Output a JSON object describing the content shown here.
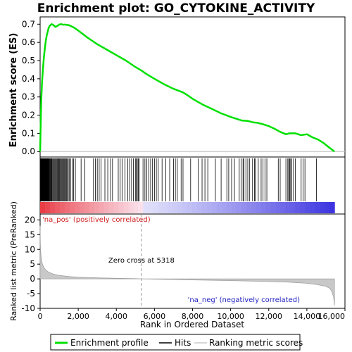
{
  "chart_data": {
    "title": "Enrichment plot: GO_CYTOKINE_ACTIVITY",
    "colors": {
      "enrichment": "#00e000",
      "hits": "#000000",
      "metric_fill": "#c8c8c8",
      "pos_band": "#e8333b",
      "neg_band": "#3b32e0",
      "annotation_pos": "#d02020",
      "annotation_neg": "#2020c0"
    },
    "top": {
      "type": "line",
      "ylabel": "Enrichment score (ES)",
      "ylim": [
        -0.03,
        0.74
      ],
      "yticks": [
        0.0,
        0.1,
        0.2,
        0.3,
        0.4,
        0.5,
        0.6,
        0.7
      ],
      "ytick_labels": [
        "0.0",
        "0.1",
        "0.2",
        "0.3",
        "0.4",
        "0.5",
        "0.6",
        "0.7"
      ],
      "series": [
        {
          "x": [
            0,
            30,
            60,
            100,
            150,
            200,
            250,
            300,
            350,
            400,
            450,
            500,
            600,
            700,
            800,
            900,
            1000,
            1100,
            1200,
            1300,
            1400,
            1500,
            1600,
            1800,
            2000,
            2500,
            3000,
            3500,
            4000,
            4500,
            5000,
            5318,
            5600,
            6000,
            6500,
            7000,
            7500,
            7800,
            8000,
            8500,
            9000,
            9500,
            10000,
            10300,
            10600,
            10900,
            11200,
            11400,
            11700,
            12000,
            12300,
            12600,
            12900,
            13100,
            13400,
            13700,
            14000,
            14300,
            14600,
            14900,
            15200,
            15450
          ],
          "y": [
            0.0,
            0.15,
            0.28,
            0.38,
            0.46,
            0.52,
            0.57,
            0.61,
            0.64,
            0.66,
            0.68,
            0.69,
            0.7,
            0.695,
            0.685,
            0.69,
            0.698,
            0.7,
            0.697,
            0.698,
            0.696,
            0.695,
            0.69,
            0.68,
            0.665,
            0.625,
            0.59,
            0.56,
            0.53,
            0.5,
            0.465,
            0.445,
            0.425,
            0.4,
            0.37,
            0.345,
            0.325,
            0.305,
            0.29,
            0.26,
            0.235,
            0.21,
            0.19,
            0.18,
            0.17,
            0.168,
            0.16,
            0.158,
            0.15,
            0.14,
            0.125,
            0.108,
            0.095,
            0.1,
            0.1,
            0.09,
            0.095,
            0.078,
            0.065,
            0.045,
            0.02,
            0.0
          ]
        }
      ]
    },
    "hits": [
      20,
      40,
      55,
      70,
      85,
      100,
      115,
      130,
      145,
      160,
      175,
      190,
      205,
      220,
      235,
      250,
      265,
      280,
      295,
      310,
      325,
      340,
      360,
      380,
      400,
      420,
      440,
      460,
      480,
      500,
      530,
      560,
      590,
      620,
      660,
      700,
      740,
      780,
      820,
      860,
      900,
      940,
      980,
      1020,
      1060,
      1100,
      1140,
      1180,
      1220,
      1260,
      1300,
      1340,
      1380,
      1420,
      1480,
      1540,
      1600,
      1680,
      1760,
      1850,
      2150,
      2350,
      2800,
      2900,
      3000,
      3100,
      3200,
      3400,
      3550,
      3700,
      3800,
      4100,
      4200,
      4300,
      4450,
      4600,
      4700,
      4800,
      4900,
      5000,
      5050,
      5100,
      5150,
      5200,
      5400,
      5500,
      5600,
      5700,
      5800,
      5900,
      6000,
      6100,
      6200,
      6400,
      6600,
      6800,
      7000,
      7100,
      7200,
      7400,
      7500,
      7900,
      8300,
      8500,
      8650,
      8800,
      9200,
      9500,
      9800,
      9900,
      10050,
      10200,
      10450,
      10550,
      10650,
      10700,
      10800,
      10900,
      11000,
      11150,
      11250,
      11300,
      11450,
      11600,
      11700,
      11800,
      11900,
      12500,
      12600,
      12900,
      13000,
      13050,
      13100,
      13150,
      13200,
      13300,
      13400,
      13700,
      13800,
      13900,
      14500
    ],
    "bottom": {
      "type": "area",
      "xlabel": "Rank in Ordered Dataset",
      "ylabel": "Ranked list metric (PreRanked)",
      "xlim": [
        0,
        16000
      ],
      "ylim": [
        -10,
        22
      ],
      "xticks": [
        0,
        2000,
        4000,
        6000,
        8000,
        10000,
        12000,
        14000,
        16000
      ],
      "xtick_labels": [
        "0",
        "2,000",
        "4,000",
        "6,000",
        "8,000",
        "10,000",
        "12,000",
        "14,000",
        "16,000"
      ],
      "yticks": [
        -10,
        -5,
        0,
        5,
        10,
        15,
        20
      ],
      "ytick_labels": [
        "-10",
        "-5",
        "0",
        "5",
        "10",
        "15",
        "20"
      ],
      "x": [
        0,
        10,
        30,
        60,
        100,
        150,
        200,
        300,
        400,
        500,
        700,
        1000,
        1500,
        2000,
        3000,
        4000,
        5000,
        5318,
        6000,
        8000,
        10000,
        12000,
        13000,
        14000,
        14500,
        15000,
        15200,
        15300,
        15400,
        15450
      ],
      "values": [
        18,
        12,
        9,
        7,
        5.5,
        4.5,
        3.8,
        3.0,
        2.5,
        2.1,
        1.6,
        1.2,
        0.8,
        0.55,
        0.35,
        0.2,
        0.08,
        0.0,
        -0.1,
        -0.35,
        -0.6,
        -0.9,
        -1.1,
        -1.5,
        -1.9,
        -2.5,
        -3.2,
        -4.2,
        -6.0,
        -9.0
      ],
      "zero_cross_label": "Zero cross at 5318",
      "zero_cross": 5318,
      "pos_label": "'na_pos' (positively correlated)",
      "neg_label": "'na_neg' (negatively correlated)"
    },
    "legend": {
      "items": [
        "Enrichment profile",
        "Hits",
        "Ranking metric scores"
      ],
      "position": "bottom"
    }
  }
}
